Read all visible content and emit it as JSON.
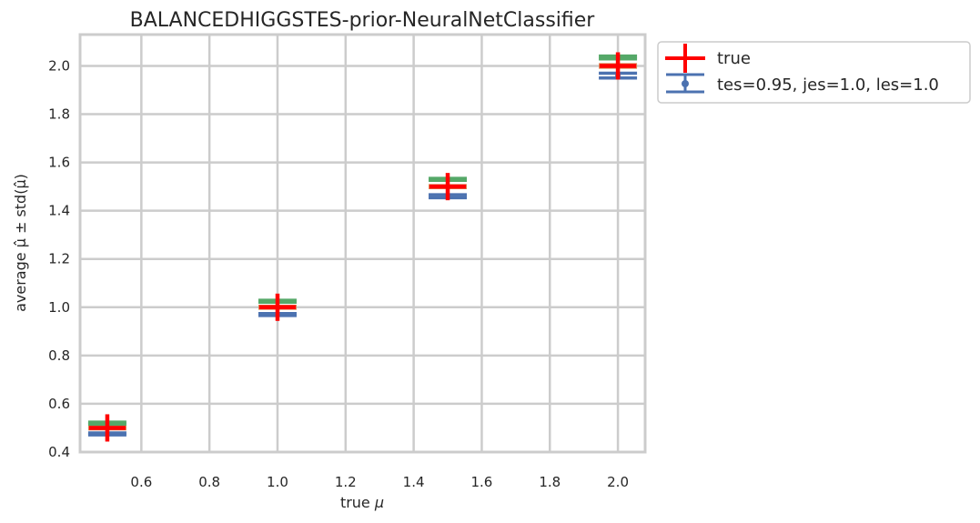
{
  "chart_data": {
    "type": "scatter",
    "title": "BALANCEDHIGGSTES-prior-NeuralNetClassifier",
    "xlabel_text": "true ",
    "xlabel_symbol": "μ",
    "ylabel": "average μ̂ ± std(μ̂)",
    "xlim": [
      0.42,
      2.08
    ],
    "ylim": [
      0.4,
      2.13
    ],
    "xticks": [
      "0.6",
      "0.8",
      "1.0",
      "1.2",
      "1.4",
      "1.6",
      "1.8",
      "2.0"
    ],
    "xtick_values": [
      0.6,
      0.8,
      1.0,
      1.2,
      1.4,
      1.6,
      1.8,
      2.0
    ],
    "yticks": [
      "0.4",
      "0.6",
      "0.8",
      "1.0",
      "1.2",
      "1.4",
      "1.6",
      "1.8",
      "2.0"
    ],
    "ytick_values": [
      0.4,
      0.6,
      0.8,
      1.0,
      1.2,
      1.4,
      1.6,
      1.8,
      2.0
    ],
    "grid": true,
    "legend_position": "outside-top-right",
    "x": [
      0.5,
      1.0,
      1.5,
      2.0
    ],
    "series": [
      {
        "name": "true",
        "kind": "marker",
        "color": "#ff0000",
        "values": [
          0.5,
          1.0,
          1.5,
          2.0
        ]
      },
      {
        "name": "tes=0.95, jes=1.0, les=1.0",
        "kind": "errorbar",
        "color": "#4c72b0",
        "values": [
          0.475,
          0.97,
          1.46,
          1.96
        ],
        "err": [
          0.004,
          0.004,
          0.006,
          0.01
        ]
      },
      {
        "kind": "errorbar",
        "color": "#dd8452",
        "values": [
          0.5,
          1.0,
          1.5,
          2.0
        ],
        "err": [
          0.004,
          0.004,
          0.004,
          0.005
        ]
      },
      {
        "kind": "errorbar",
        "color": "#55a868",
        "values": [
          0.52,
          1.025,
          1.53,
          2.035
        ],
        "err": [
          0.004,
          0.004,
          0.004,
          0.006
        ]
      }
    ]
  }
}
